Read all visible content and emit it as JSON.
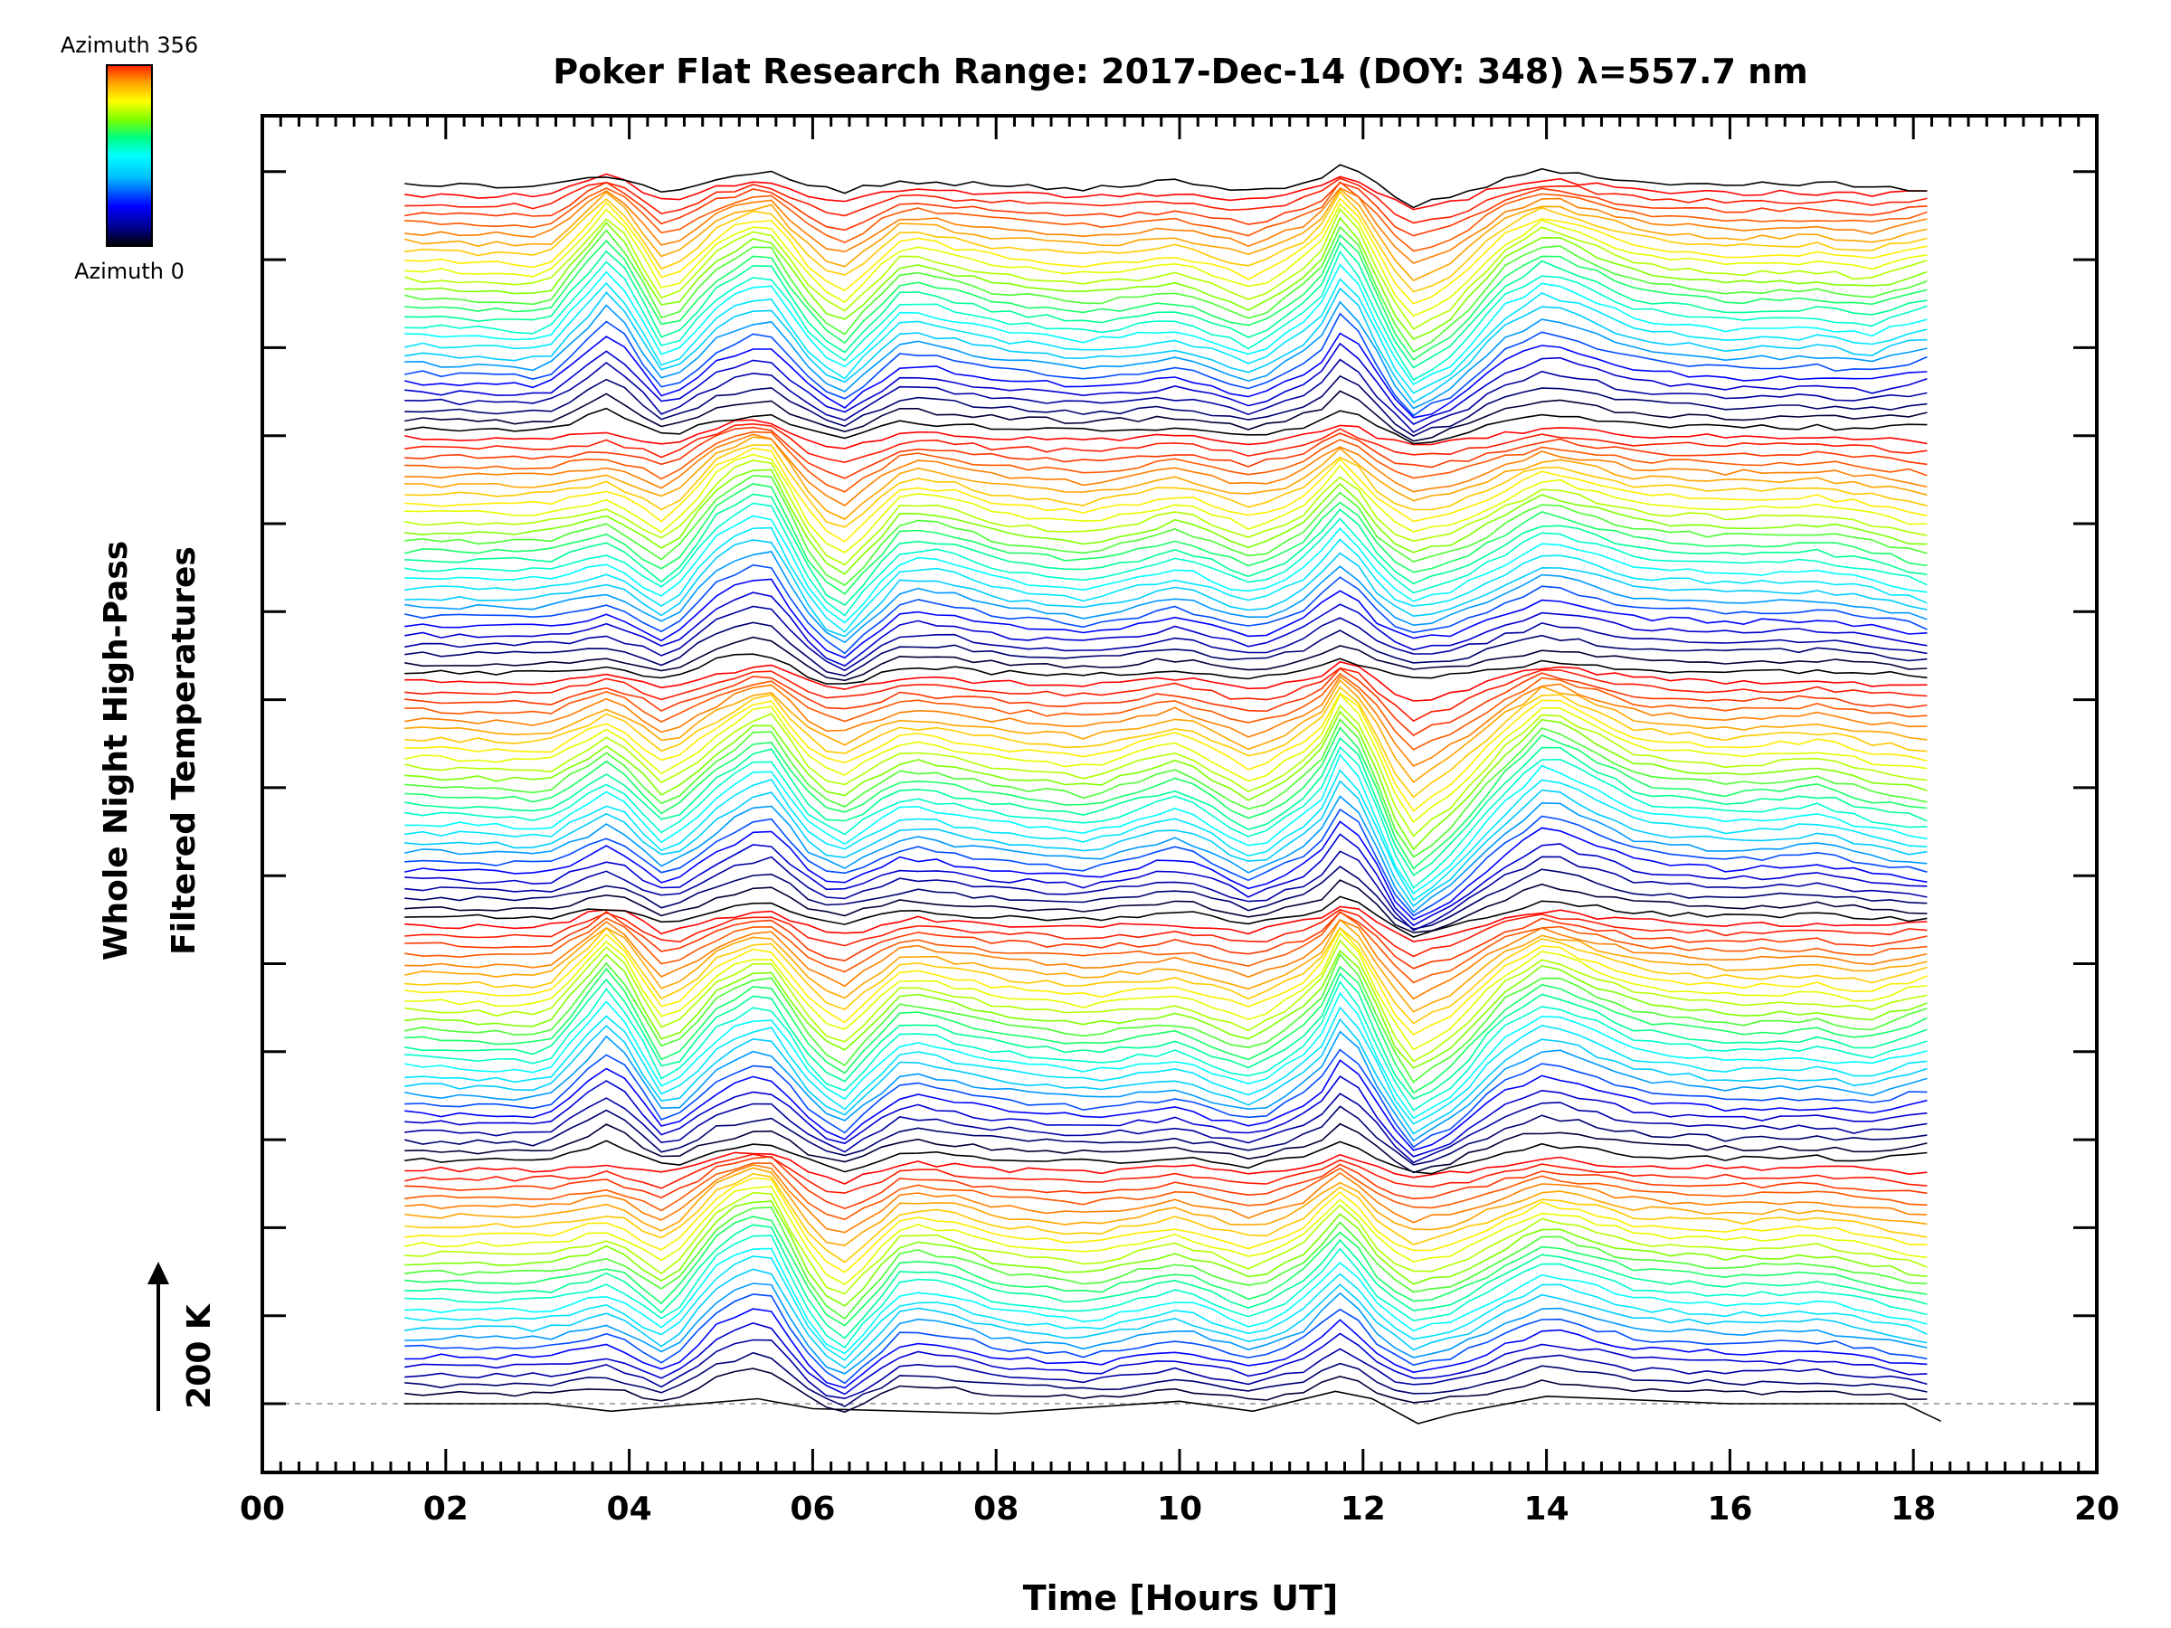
{
  "chart_data": {
    "type": "line",
    "title": "Poker Flat Research Range: 2017-Dec-14 (DOY: 348) λ=557.7 nm",
    "xlabel": "Time [Hours UT]",
    "ylabel_lines": [
      "Whole Night High-Pass",
      "Filtered Temperatures"
    ],
    "scale_label": "200 K",
    "colorbar": {
      "top_label": "Azimuth 356",
      "bottom_label": "Azimuth 0"
    },
    "xlim": [
      0,
      20
    ],
    "x_ticks": [
      "00",
      "02",
      "04",
      "06",
      "08",
      "10",
      "12",
      "14",
      "16",
      "18",
      "20"
    ],
    "x_range_of_data": [
      1.55,
      18.3
    ],
    "grid": false,
    "series_count": 131,
    "series_order": "bottom to top by azimuth, 0 to 356 deg, repeating in cycles",
    "y_offset_per_series": "vertically stacked traces, arbitrary offset (scale arrow = 200 K)",
    "series": [
      {
        "name": "Azimuth 0",
        "color": "#000000",
        "x": [
          1.55,
          3.1,
          3.8,
          5.4,
          6.0,
          8.0,
          10.0,
          10.8,
          11.7,
          12.1,
          12.6,
          13.0,
          14.0,
          16.0,
          17.9,
          18.3
        ],
        "y": [
          0,
          0,
          -15,
          10,
          -10,
          -20,
          5,
          -15,
          25,
          10,
          -40,
          -20,
          15,
          0,
          0,
          -35
        ]
      }
    ],
    "feature_shapes": {
      "cycleA": [
        [
          1.55,
          0
        ],
        [
          3.1,
          0
        ],
        [
          3.8,
          6
        ],
        [
          4.4,
          -8
        ],
        [
          5.0,
          18
        ],
        [
          5.5,
          26
        ],
        [
          6.0,
          -6
        ],
        [
          6.3,
          -18
        ],
        [
          7.0,
          8
        ],
        [
          7.5,
          6
        ],
        [
          8.0,
          0
        ],
        [
          9.0,
          -4
        ],
        [
          10.0,
          4
        ],
        [
          10.8,
          -6
        ],
        [
          11.3,
          2
        ],
        [
          11.8,
          20
        ],
        [
          12.1,
          4
        ],
        [
          12.5,
          -8
        ],
        [
          13.0,
          -4
        ],
        [
          14.0,
          14
        ],
        [
          15.0,
          4
        ],
        [
          16.0,
          2
        ],
        [
          17.0,
          3
        ],
        [
          17.5,
          0
        ],
        [
          18.3,
          -6
        ]
      ],
      "cycleB": [
        [
          1.55,
          0
        ],
        [
          3.1,
          -2
        ],
        [
          3.8,
          26
        ],
        [
          4.4,
          -10
        ],
        [
          5.0,
          12
        ],
        [
          5.5,
          20
        ],
        [
          6.0,
          -4
        ],
        [
          6.3,
          -14
        ],
        [
          7.0,
          10
        ],
        [
          8.0,
          2
        ],
        [
          9.0,
          -2
        ],
        [
          10.0,
          2
        ],
        [
          10.8,
          -8
        ],
        [
          11.5,
          8
        ],
        [
          11.8,
          30
        ],
        [
          12.1,
          8
        ],
        [
          12.5,
          -20
        ],
        [
          13.0,
          -10
        ],
        [
          13.5,
          10
        ],
        [
          14.0,
          20
        ],
        [
          15.0,
          6
        ],
        [
          16.0,
          2
        ],
        [
          17.0,
          3
        ],
        [
          17.5,
          0
        ],
        [
          18.3,
          8
        ]
      ],
      "cycleC": [
        [
          1.55,
          0
        ],
        [
          3.1,
          -2
        ],
        [
          3.8,
          12
        ],
        [
          4.4,
          -8
        ],
        [
          5.0,
          10
        ],
        [
          5.5,
          22
        ],
        [
          6.0,
          -2
        ],
        [
          6.3,
          -8
        ],
        [
          7.0,
          6
        ],
        [
          8.0,
          0
        ],
        [
          9.0,
          -4
        ],
        [
          10.0,
          6
        ],
        [
          10.8,
          -10
        ],
        [
          11.5,
          6
        ],
        [
          11.8,
          28
        ],
        [
          12.1,
          6
        ],
        [
          12.5,
          -28
        ],
        [
          13.0,
          -14
        ],
        [
          13.5,
          6
        ],
        [
          14.0,
          22
        ],
        [
          15.0,
          4
        ],
        [
          16.0,
          0
        ],
        [
          17.0,
          3
        ],
        [
          17.5,
          -2
        ],
        [
          18.3,
          -6
        ]
      ]
    },
    "colors": {
      "azimuth_palette": [
        "#000000",
        "#00008b",
        "#0000ff",
        "#00bfff",
        "#00ffff",
        "#00ff7f",
        "#7fff00",
        "#ffff00",
        "#ffa500",
        "#ff4500",
        "#ff0000"
      ],
      "baseline_dash": "#aaaaaa"
    }
  }
}
